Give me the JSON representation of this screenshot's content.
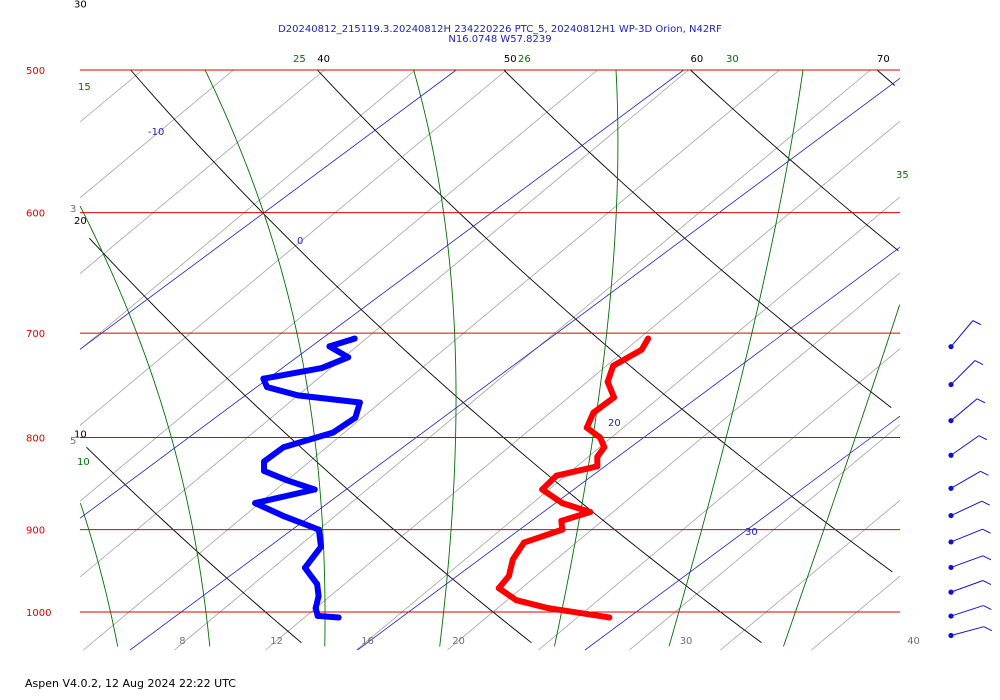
{
  "header": {
    "title_line1": "D20240812_215119.3.20240812H 234220226 PTC_5, 20240812H1 WP-3D Orion, N42RF",
    "title_line2": "N16.0748 W57.8239"
  },
  "footer": {
    "text": "Aspen V4.0.2, 12 Aug 2024  22:22 UTC"
  },
  "colors": {
    "isobar": "#e00000",
    "isotherm": "#a0a0a0",
    "dry_adiabat": "#000000",
    "moist_adiabat": "#007000",
    "mixing_ratio": "#2020c0",
    "temperature": "#ff0000",
    "dewpoint": "#0000ff"
  },
  "chart_data": {
    "type": "skew-t",
    "pressure_axis": {
      "unit": "hPa",
      "ticks": [
        {
          "value": 500,
          "label": "500"
        },
        {
          "value": 600,
          "label": "600"
        },
        {
          "value": 700,
          "label": "700"
        },
        {
          "value": 800,
          "label": "800"
        },
        {
          "value": 900,
          "label": "900"
        },
        {
          "value": 1000,
          "label": "1000"
        }
      ],
      "range": [
        500,
        1040
      ]
    },
    "temperature_axis": {
      "unit": "C",
      "ticks": [
        {
          "value": 8,
          "label": "8"
        },
        {
          "value": 12,
          "label": "12"
        },
        {
          "value": 16,
          "label": "16"
        },
        {
          "value": 20,
          "label": "20"
        },
        {
          "value": 30,
          "label": "30"
        },
        {
          "value": 40,
          "label": "40"
        }
      ]
    },
    "dry_adiabat_labels": [
      {
        "value": 40,
        "label": "40",
        "end": "top"
      },
      {
        "value": 50,
        "label": "50",
        "end": "top"
      },
      {
        "value": 60,
        "label": "60",
        "end": "top"
      },
      {
        "value": 70,
        "label": "70",
        "end": "top"
      },
      {
        "value": 30,
        "label": "30",
        "end": "left"
      },
      {
        "value": 20,
        "label": "20",
        "end": "left"
      },
      {
        "value": 10,
        "label": "10",
        "end": "left"
      }
    ],
    "moist_adiabat_labels": [
      {
        "value": 15,
        "label": "15"
      },
      {
        "value": 25,
        "label": "25"
      },
      {
        "value": 26,
        "label": "26"
      },
      {
        "value": 30,
        "label": "30"
      },
      {
        "value": 35,
        "label": "35"
      },
      {
        "value": 10,
        "label": "10"
      }
    ],
    "mixing_ratio_labels": [
      {
        "value": -10,
        "label": "-10"
      },
      {
        "value": 0,
        "label": "0"
      },
      {
        "value": 20,
        "label": "20"
      },
      {
        "value": 30,
        "label": "30"
      }
    ],
    "isotherm_left_labels": [
      {
        "value": 3,
        "label": "3"
      },
      {
        "value": 5,
        "label": "5"
      }
    ],
    "temperature_profile": [
      [
        705,
        12.4
      ],
      [
        715,
        12.7
      ],
      [
        730,
        12.3
      ],
      [
        745,
        12.9
      ],
      [
        760,
        14.0
      ],
      [
        775,
        13.9
      ],
      [
        790,
        14.4
      ],
      [
        800,
        15.5
      ],
      [
        810,
        16.2
      ],
      [
        820,
        16.4
      ],
      [
        830,
        16.9
      ],
      [
        840,
        15.6
      ],
      [
        855,
        15.7
      ],
      [
        870,
        17.3
      ],
      [
        880,
        19.0
      ],
      [
        890,
        18.2
      ],
      [
        900,
        18.7
      ],
      [
        915,
        17.7
      ],
      [
        935,
        18.1
      ],
      [
        955,
        18.8
      ],
      [
        970,
        19.0
      ],
      [
        985,
        20.4
      ],
      [
        995,
        22.2
      ],
      [
        1007,
        25.4
      ]
    ],
    "dewpoint_profile": [
      [
        705,
        -0.5
      ],
      [
        712,
        -1.2
      ],
      [
        722,
        0.2
      ],
      [
        732,
        -0.4
      ],
      [
        742,
        -2.4
      ],
      [
        750,
        -1.8
      ],
      [
        758,
        0.0
      ],
      [
        765,
        3.1
      ],
      [
        780,
        3.7
      ],
      [
        795,
        3.5
      ],
      [
        810,
        2.1
      ],
      [
        825,
        2.0
      ],
      [
        835,
        2.5
      ],
      [
        845,
        4.0
      ],
      [
        855,
        5.7
      ],
      [
        870,
        3.8
      ],
      [
        885,
        5.8
      ],
      [
        900,
        8.0
      ],
      [
        920,
        9.0
      ],
      [
        945,
        9.4
      ],
      [
        965,
        10.8
      ],
      [
        980,
        11.5
      ],
      [
        995,
        12.0
      ],
      [
        1005,
        12.5
      ],
      [
        1007,
        13.5
      ]
    ],
    "wind_barbs": [
      {
        "pressure": 705,
        "speed_kt": 15,
        "direction_deg": 40
      },
      {
        "pressure": 740,
        "speed_kt": 15,
        "direction_deg": 45
      },
      {
        "pressure": 775,
        "speed_kt": 15,
        "direction_deg": 50
      },
      {
        "pressure": 810,
        "speed_kt": 15,
        "direction_deg": 55
      },
      {
        "pressure": 845,
        "speed_kt": 15,
        "direction_deg": 60
      },
      {
        "pressure": 875,
        "speed_kt": 15,
        "direction_deg": 65
      },
      {
        "pressure": 905,
        "speed_kt": 15,
        "direction_deg": 68
      },
      {
        "pressure": 935,
        "speed_kt": 15,
        "direction_deg": 70
      },
      {
        "pressure": 965,
        "speed_kt": 15,
        "direction_deg": 70
      },
      {
        "pressure": 995,
        "speed_kt": 15,
        "direction_deg": 72
      },
      {
        "pressure": 1020,
        "speed_kt": 15,
        "direction_deg": 75
      }
    ]
  }
}
